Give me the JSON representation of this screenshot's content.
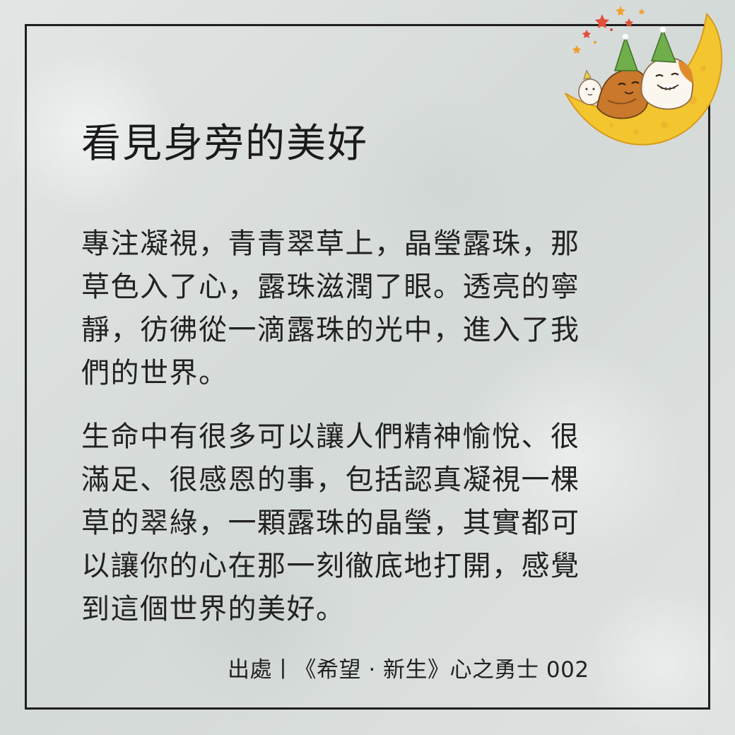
{
  "title": "看見身旁的美好",
  "paragraphs": [
    {
      "lines": [
        "專注凝視，青青翠草上，晶瑩露珠，那",
        "草色入了心，露珠滋潤了眼。透亮的寧",
        "靜，彷彿從一滴露珠的光中，進入了我",
        "們的世界。"
      ]
    },
    {
      "lines": [
        "生命中有很多可以讓人們精神愉悅、很",
        "滿足、很感恩的事，包括認真凝視一棵",
        "草的翠綠，一顆露珠的晶瑩，其實都可",
        "以讓你的心在那一刻徹底地打開，感覺",
        "到這個世界的美好。"
      ]
    }
  ],
  "source": "出處丨《希望 · 新生》心之勇士 002",
  "illustration": {
    "name": "moon-cats-illustration",
    "colors": {
      "moon": "#f3c62f",
      "moon_shadow": "#d99a1c",
      "hat_green": "#6fae4a",
      "hat_yellow": "#f2d23a",
      "cat_orange": "#c9782c",
      "star_red": "#e0503a",
      "star_orange": "#f0a030"
    }
  },
  "colors": {
    "background": "#dbe0df",
    "frame": "#1f1f1f",
    "text": "#222222"
  }
}
